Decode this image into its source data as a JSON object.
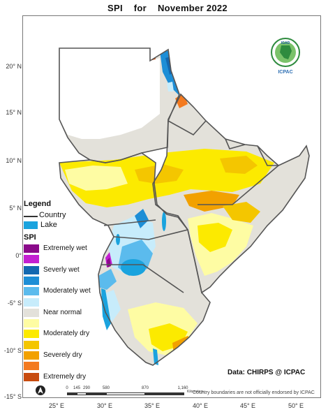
{
  "title": {
    "part1": "SPI",
    "part2": "for",
    "part3": "November 2022"
  },
  "colors": {
    "extremely_wet": "#8a0a8a",
    "very_wet_2": "#c31fd1",
    "severely_wet": "#1368b0",
    "very_wet": "#1d8ed6",
    "moderately_wet": "#5bbbed",
    "slightly_wet": "#c7ecfb",
    "near_normal": "#e3e1da",
    "slightly_dry": "#fefca3",
    "moderately_dry": "#fcea00",
    "dry_2": "#f4c600",
    "severely_dry": "#f2a100",
    "extremely_dry_1": "#f37a20",
    "extremely_dry": "#c84b0e",
    "lake": "#1aa3de",
    "border": "#555555"
  },
  "map": {
    "lat_labels": [
      "20° N",
      "15° N",
      "10° N",
      "5° N",
      "0°",
      "-5° S",
      "-10° S",
      "-15° S"
    ],
    "lon_labels": [
      "25° E",
      "30° E",
      "35° E",
      "40° E",
      "45° E",
      "50° E"
    ]
  },
  "legend": {
    "title": "Legend",
    "country_label": "Country",
    "lake_label": "Lake",
    "spi_title": "SPI",
    "classes": [
      {
        "label": "Extremely wet",
        "color_key": "extremely_wet"
      },
      {
        "label": "",
        "color_key": "very_wet_2"
      },
      {
        "label": "Severly wet",
        "color_key": "severely_wet"
      },
      {
        "label": "",
        "color_key": "very_wet"
      },
      {
        "label": "Moderately wet",
        "color_key": "moderately_wet"
      },
      {
        "label": "",
        "color_key": "slightly_wet"
      },
      {
        "label": "Near normal",
        "color_key": "near_normal"
      },
      {
        "label": "",
        "color_key": "slightly_dry"
      },
      {
        "label": "Moderately dry",
        "color_key": "moderately_dry"
      },
      {
        "label": "",
        "color_key": "dry_2"
      },
      {
        "label": "Severely dry",
        "color_key": "severely_dry"
      },
      {
        "label": "",
        "color_key": "extremely_dry_1"
      },
      {
        "label": "Extremely dry",
        "color_key": "extremely_dry"
      }
    ]
  },
  "logo": {
    "top_text": "IGAD",
    "bottom_text": "ICPAC"
  },
  "source": "Data: CHIRPS @ ICPAC",
  "disclaimer": "Country boundaries are not officially endorsed by ICPAC",
  "scale": {
    "labels": [
      "0",
      "145",
      "290",
      "580",
      "870",
      "1,160"
    ],
    "unit": "Kilometers"
  }
}
